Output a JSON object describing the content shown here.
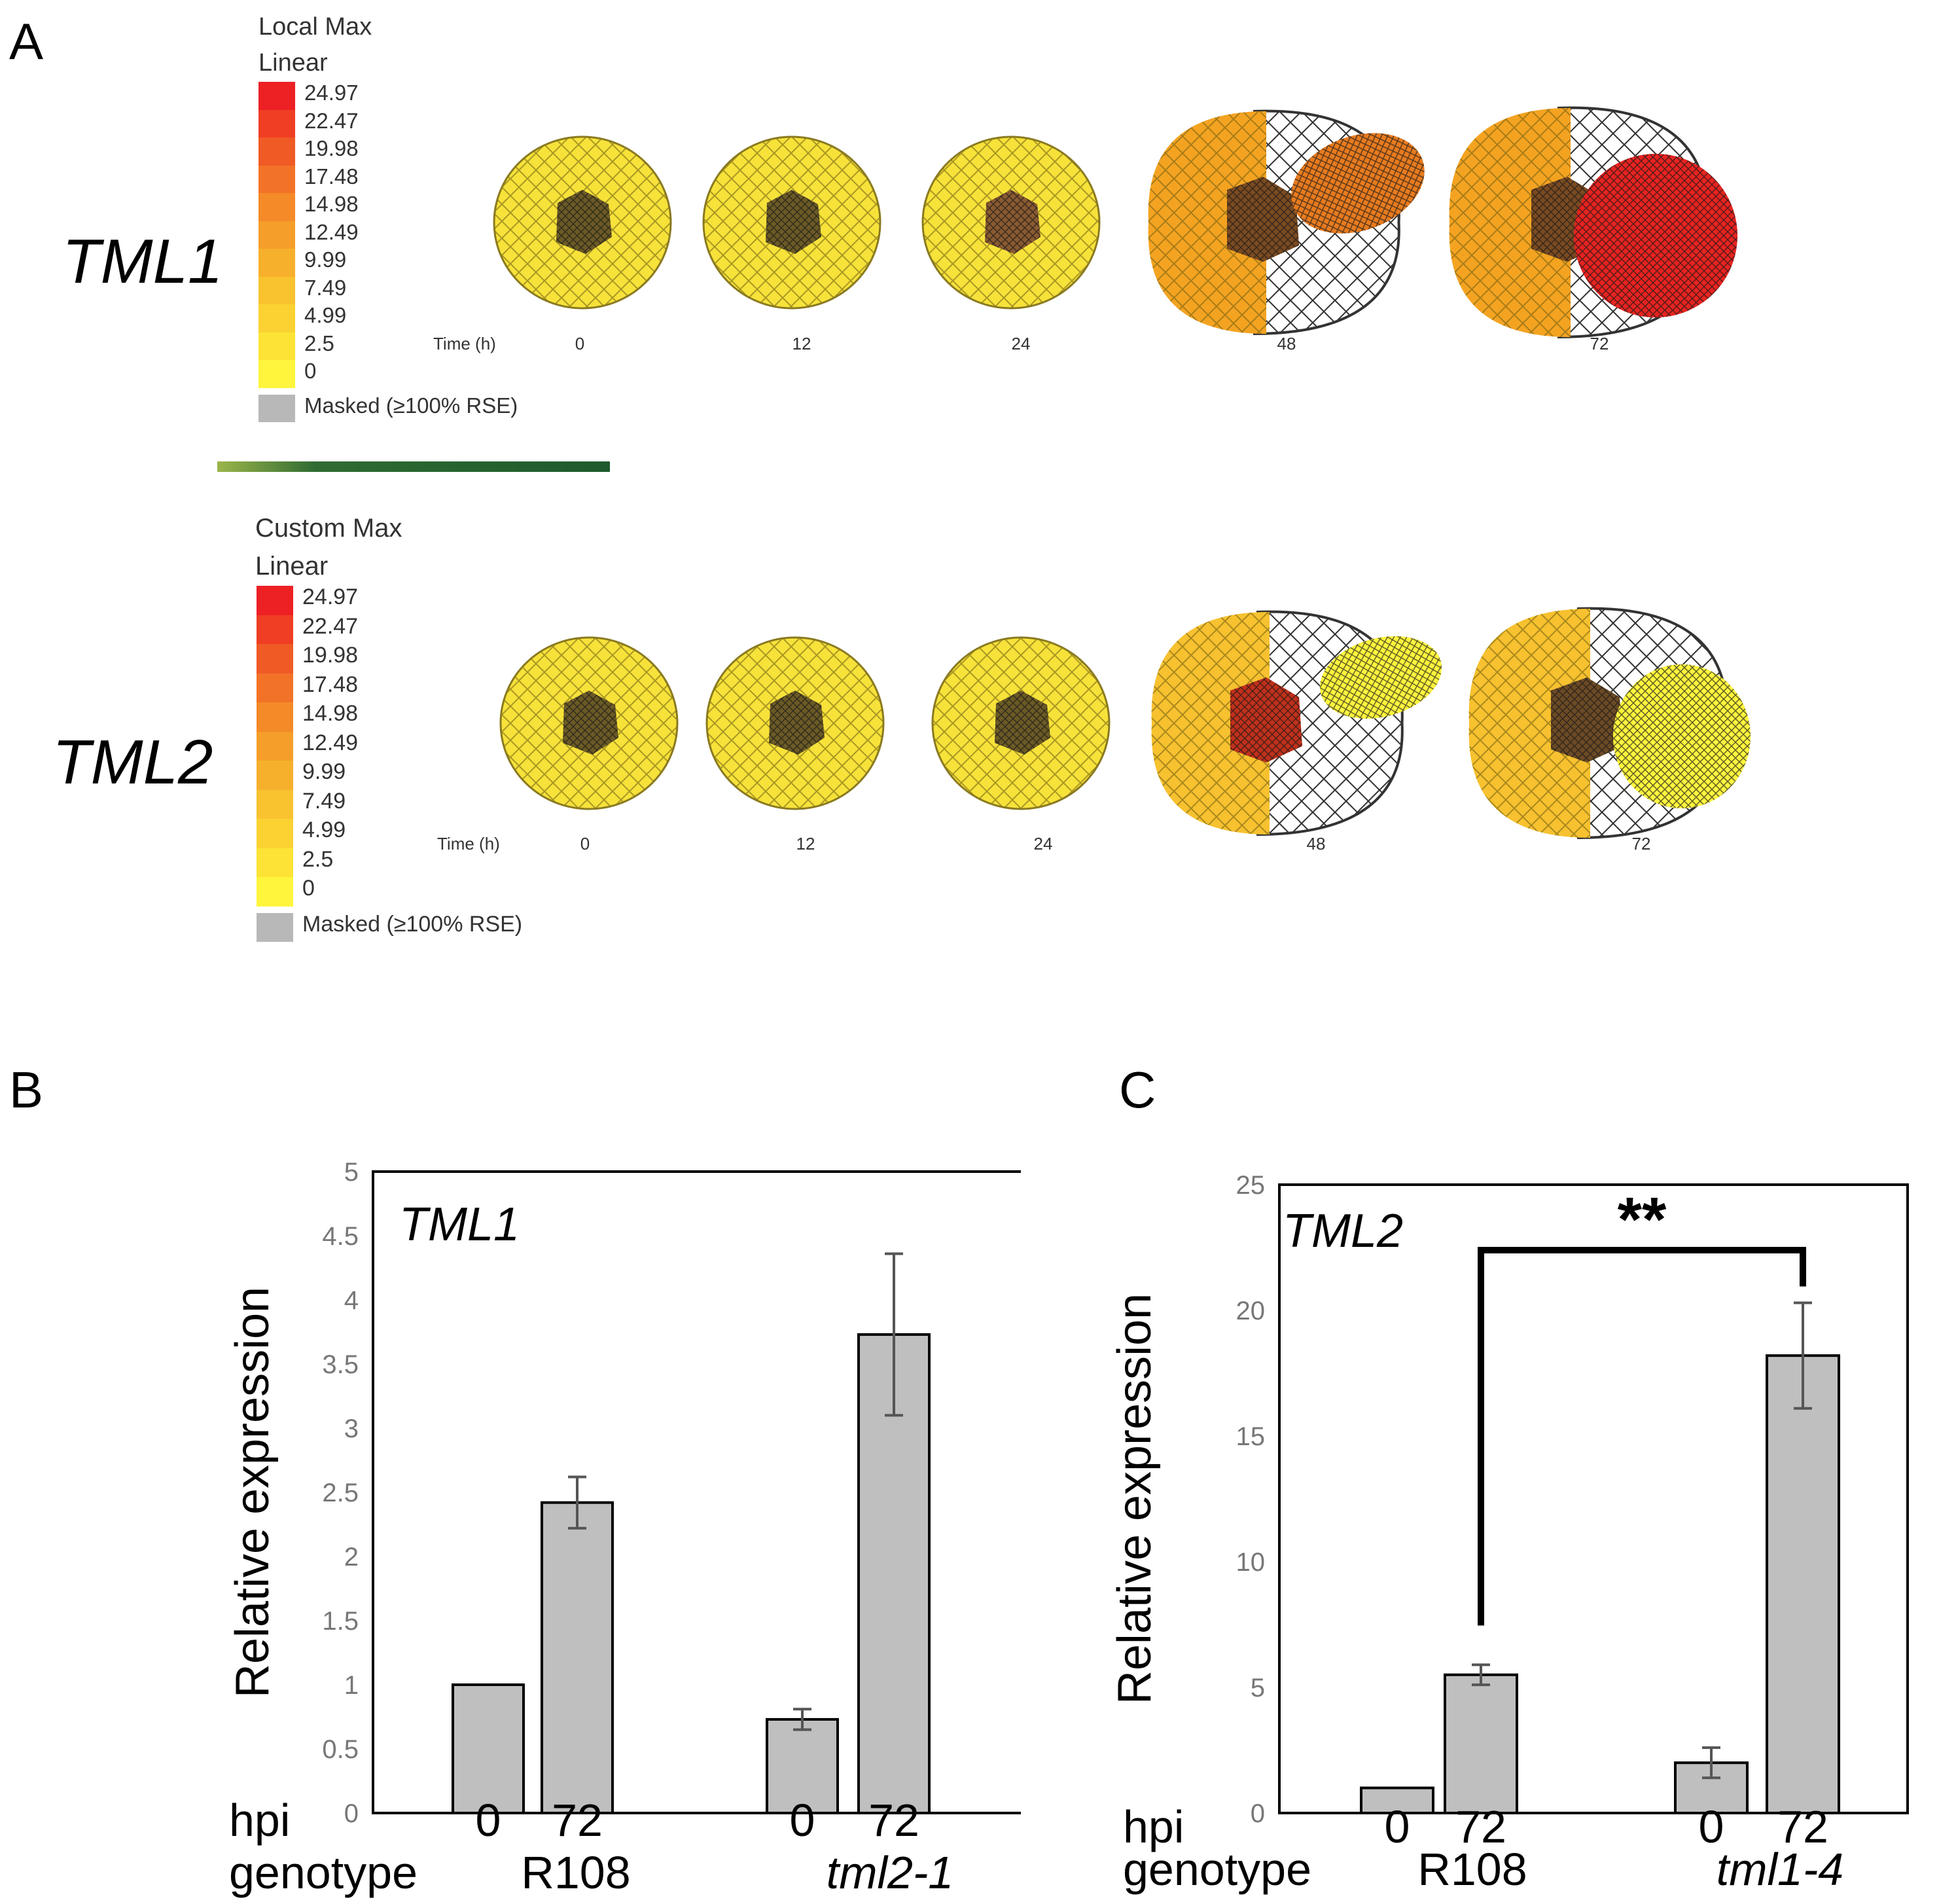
{
  "panel_labels": {
    "a": "A",
    "b": "B",
    "c": "C"
  },
  "colors": {
    "yellow": "#f7e23a",
    "yellow_light": "#fff53d",
    "orange": "#f4a321",
    "orange_dark": "#e87b1e",
    "red": "#e8231f",
    "mask_gray": "#b8b8b8",
    "bar_fill": "#bfbfbf",
    "divider_green": "#1e5a2c"
  },
  "legend_values": [
    "24.97",
    "22.47",
    "19.98",
    "17.48",
    "14.98",
    "12.49",
    "9.99",
    "7.49",
    "4.99",
    "2.5",
    "0"
  ],
  "legend_swatches": [
    "#ed2024",
    "#ef3e23",
    "#f05a25",
    "#f27327",
    "#f48a28",
    "#f59e2a",
    "#f7b02c",
    "#f9c22f",
    "#fbd232",
    "#fde335",
    "#fff53d"
  ],
  "panel_a": {
    "rows": [
      {
        "gene": "TML1",
        "scale_title": "Local Max",
        "scale_mode": "Linear",
        "masked_label": "Masked (≥100% RSE)",
        "time_label": "Time (h)",
        "times": [
          "0",
          "12",
          "24",
          "48",
          "72"
        ]
      },
      {
        "gene": "TML2",
        "scale_title": "Custom Max",
        "scale_mode": "Linear",
        "masked_label": "Masked (≥100% RSE)",
        "time_label": "Time (h)",
        "times": [
          "0",
          "12",
          "24",
          "48",
          "72"
        ]
      }
    ]
  },
  "chart_data": [
    {
      "type": "bar",
      "panel": "B",
      "gene_label": "TML1",
      "ylabel": "Relative expression",
      "ylim": [
        0,
        5
      ],
      "yticks": [
        "0",
        "0.5",
        "1",
        "1.5",
        "2",
        "2.5",
        "3",
        "3.5",
        "4",
        "4.5",
        "5"
      ],
      "row_labels": {
        "hpi": "hpi",
        "genotype": "genotype"
      },
      "groups": [
        {
          "genotype": "R108",
          "bars": [
            {
              "hpi": "0",
              "value": 1.0,
              "error": 0
            },
            {
              "hpi": "72",
              "value": 2.42,
              "error": 0.2
            }
          ]
        },
        {
          "genotype": "tml2-1",
          "bars": [
            {
              "hpi": "0",
              "value": 0.73,
              "error": 0.08
            },
            {
              "hpi": "72",
              "value": 3.73,
              "error": 0.63
            }
          ]
        }
      ]
    },
    {
      "type": "bar",
      "panel": "C",
      "gene_label": "TML2",
      "ylabel": "Relative expression",
      "ylim": [
        0,
        25
      ],
      "yticks": [
        "0",
        "5",
        "10",
        "15",
        "20",
        "25"
      ],
      "row_labels": {
        "hpi": "hpi",
        "genotype": "genotype"
      },
      "significance": "**",
      "groups": [
        {
          "genotype": "R108",
          "bars": [
            {
              "hpi": "0",
              "value": 1.0,
              "error": 0
            },
            {
              "hpi": "72",
              "value": 5.5,
              "error": 0.4
            }
          ]
        },
        {
          "genotype": "tml1-4",
          "bars": [
            {
              "hpi": "0",
              "value": 2.0,
              "error": 0.6
            },
            {
              "hpi": "72",
              "value": 18.2,
              "error": 2.1
            }
          ]
        }
      ]
    }
  ]
}
